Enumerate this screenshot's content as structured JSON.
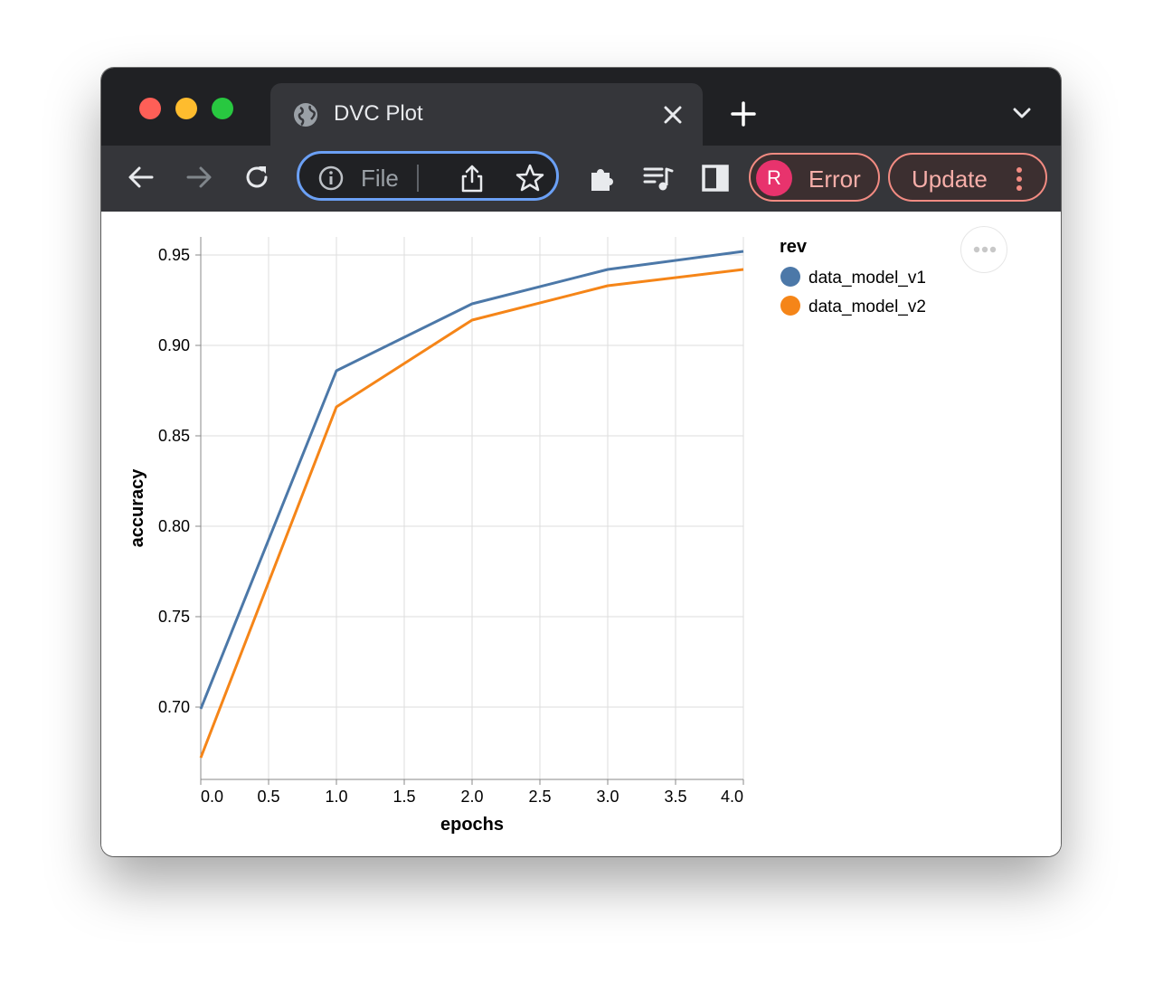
{
  "window": {
    "tab_title": "DVC Plot",
    "omnibox_text": "File",
    "profile_initial": "R",
    "profile_label": "Error",
    "update_label": "Update",
    "colors": {
      "titlebar": "#202124",
      "toolbar": "#35363a",
      "omnibox_border": "#6ba0f5",
      "alert_text": "#f6aea9",
      "avatar": "#e8336d"
    },
    "icons": [
      "globe-icon",
      "close-icon",
      "plus-icon",
      "chevron-down-icon",
      "back-arrow-icon",
      "forward-arrow-icon",
      "reload-icon",
      "info-icon",
      "share-icon",
      "star-icon",
      "puzzle-icon",
      "media-icon",
      "sidepanel-icon",
      "more-vert-icon",
      "more-horiz-icon"
    ]
  },
  "chart_data": {
    "type": "line",
    "xlabel": "epochs",
    "ylabel": "accuracy",
    "x": [
      0,
      1,
      2,
      3,
      4
    ],
    "xlim": [
      0,
      4
    ],
    "ylim": [
      0.66,
      0.96
    ],
    "x_ticks": [
      "0.0",
      "0.5",
      "1.0",
      "1.5",
      "2.0",
      "2.5",
      "3.0",
      "3.5",
      "4.0"
    ],
    "y_ticks": [
      "0.70",
      "0.75",
      "0.80",
      "0.85",
      "0.90",
      "0.95"
    ],
    "grid": true,
    "legend_title": "rev",
    "legend_position": "right",
    "series": [
      {
        "name": "data_model_v1",
        "color": "#4c78a8",
        "values": [
          0.699,
          0.886,
          0.923,
          0.942,
          0.952
        ]
      },
      {
        "name": "data_model_v2",
        "color": "#f58518",
        "values": [
          0.672,
          0.866,
          0.914,
          0.933,
          0.942
        ]
      }
    ]
  }
}
